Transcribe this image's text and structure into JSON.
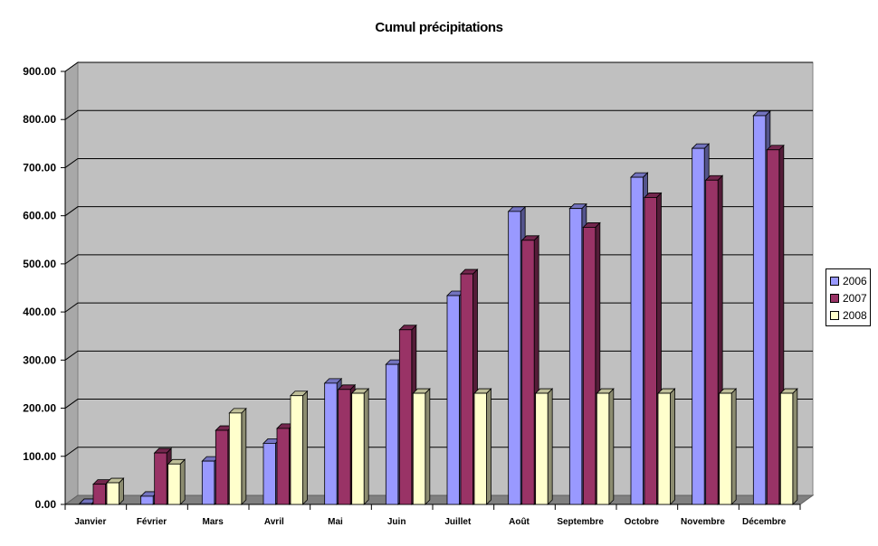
{
  "chart_data": {
    "type": "bar",
    "title": "Cumul précipitations",
    "categories": [
      "Janvier",
      "Février",
      "Mars",
      "Avril",
      "Mai",
      "Juin",
      "Juillet",
      "Août",
      "Septembre",
      "Octobre",
      "Novembre",
      "Décembre"
    ],
    "series": [
      {
        "name": "2006",
        "color": "#9999ff",
        "values": [
          2,
          17,
          90,
          127,
          252,
          291,
          434,
          609,
          615,
          680,
          740,
          808
        ]
      },
      {
        "name": "2007",
        "color": "#993366",
        "values": [
          42,
          107,
          154,
          158,
          239,
          363,
          479,
          549,
          576,
          638,
          674,
          737
        ]
      },
      {
        "name": "2008",
        "color": "#ffffcc",
        "values": [
          45,
          84,
          190,
          226,
          231,
          231,
          231,
          231,
          231,
          231,
          231,
          231
        ]
      }
    ],
    "yticks": [
      "0.00",
      "100.00",
      "200.00",
      "300.00",
      "400.00",
      "500.00",
      "600.00",
      "700.00",
      "800.00",
      "900.00"
    ],
    "ylim": [
      0,
      900
    ],
    "xlabel": "",
    "ylabel": "",
    "legend": "right",
    "grid": true,
    "background": "#c0c0c0"
  }
}
